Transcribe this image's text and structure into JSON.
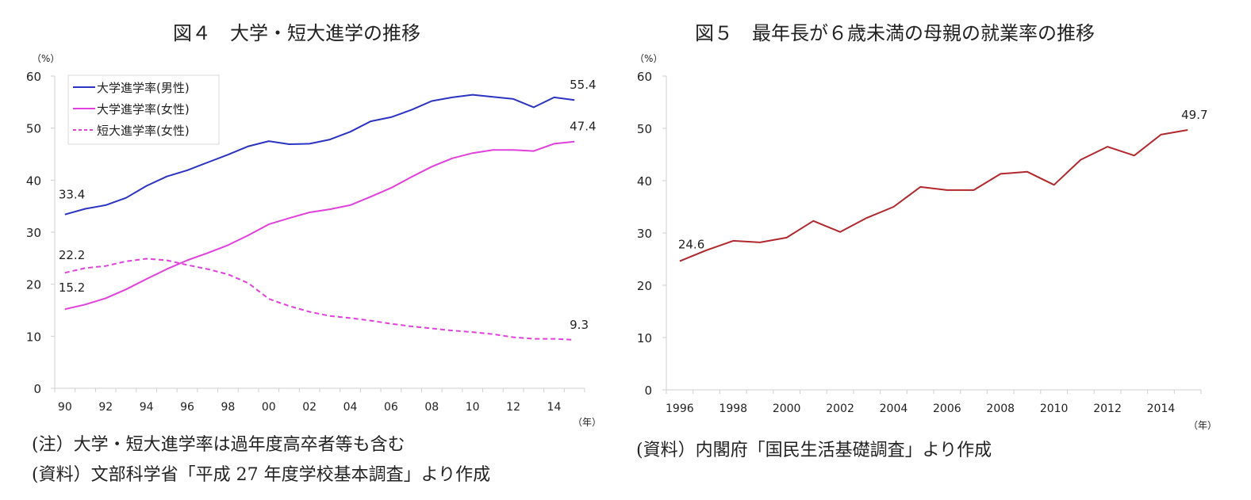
{
  "chart_data": [
    {
      "type": "line",
      "title": "図４　大学・短大進学の推移",
      "ylabel": "（%）",
      "xlabel": "（年）",
      "ylim": [
        0,
        60
      ],
      "yticks": [
        "0",
        "10",
        "20",
        "30",
        "40",
        "50",
        "60"
      ],
      "categories": [
        "90",
        "91",
        "92",
        "93",
        "94",
        "95",
        "96",
        "97",
        "98",
        "99",
        "00",
        "01",
        "02",
        "03",
        "04",
        "05",
        "06",
        "07",
        "08",
        "09",
        "10",
        "11",
        "12",
        "13",
        "14",
        "15"
      ],
      "xtick_labels": [
        "90",
        "92",
        "94",
        "96",
        "98",
        "00",
        "02",
        "04",
        "06",
        "08",
        "10",
        "12",
        "14"
      ],
      "legend": "top-left",
      "series": [
        {
          "name": "大学進学率(男性)",
          "color": "#2b33c2",
          "dash": false,
          "values": [
            33.4,
            34.5,
            35.2,
            36.6,
            38.9,
            40.7,
            41.9,
            43.4,
            44.9,
            46.5,
            47.5,
            46.9,
            47.0,
            47.8,
            49.3,
            51.3,
            52.1,
            53.5,
            55.2,
            55.9,
            56.4,
            56.0,
            55.6,
            54.0,
            55.9,
            55.4
          ]
        },
        {
          "name": "大学進学率(女性)",
          "color": "#e040dc",
          "dash": false,
          "values": [
            15.2,
            16.1,
            17.3,
            19.0,
            21.0,
            22.9,
            24.6,
            26.0,
            27.5,
            29.4,
            31.5,
            32.7,
            33.8,
            34.4,
            35.2,
            36.8,
            38.5,
            40.6,
            42.6,
            44.2,
            45.2,
            45.8,
            45.8,
            45.6,
            47.0,
            47.4
          ]
        },
        {
          "name": "短大進学率(女性)",
          "color": "#e040dc",
          "dash": true,
          "values": [
            22.2,
            23.1,
            23.5,
            24.4,
            24.9,
            24.6,
            23.7,
            22.9,
            21.9,
            20.2,
            17.2,
            15.8,
            14.7,
            13.9,
            13.5,
            13.0,
            12.4,
            11.9,
            11.5,
            11.1,
            10.8,
            10.4,
            9.8,
            9.5,
            9.5,
            9.3
          ]
        }
      ],
      "annotations": [
        {
          "text": "33.4",
          "series": 0,
          "index": 0
        },
        {
          "text": "55.4",
          "series": 0,
          "index": 25
        },
        {
          "text": "47.4",
          "series": 1,
          "index": 25
        },
        {
          "text": "15.2",
          "series": 1,
          "index": 0
        },
        {
          "text": "22.2",
          "series": 2,
          "index": 0
        },
        {
          "text": "9.3",
          "series": 2,
          "index": 25
        }
      ],
      "notes": [
        "(注）大学・短大進学率は過年度高卒者等も含む",
        "(資料）文部科学省「平成 27 年度学校基本調査」より作成"
      ]
    },
    {
      "type": "line",
      "title": "図５　最年長が６歳未満の母親の就業率の推移",
      "ylabel": "（%）",
      "xlabel": "（年）",
      "ylim": [
        0,
        60
      ],
      "yticks": [
        "0",
        "10",
        "20",
        "30",
        "40",
        "50",
        "60"
      ],
      "categories": [
        "1996",
        "1997",
        "1998",
        "1999",
        "2000",
        "2001",
        "2002",
        "2003",
        "2004",
        "2005",
        "2006",
        "2007",
        "2008",
        "2009",
        "2010",
        "2011",
        "2012",
        "2013",
        "2014",
        "2015"
      ],
      "xtick_labels": [
        "1996",
        "1998",
        "2000",
        "2002",
        "2004",
        "2006",
        "2008",
        "2010",
        "2012",
        "2014"
      ],
      "series": [
        {
          "name": "母親の就業率",
          "color": "#b0282c",
          "dash": false,
          "values": [
            24.6,
            26.7,
            28.5,
            28.2,
            29.1,
            32.3,
            30.2,
            32.9,
            35.0,
            38.8,
            38.2,
            38.2,
            41.3,
            41.7,
            39.2,
            44.0,
            46.5,
            44.8,
            48.8,
            49.7
          ]
        }
      ],
      "annotations": [
        {
          "text": "24.6",
          "series": 0,
          "index": 0
        },
        {
          "text": "49.7",
          "series": 0,
          "index": 19
        }
      ],
      "notes": [
        "(資料）内閣府「国民生活基礎調査」より作成"
      ]
    }
  ]
}
